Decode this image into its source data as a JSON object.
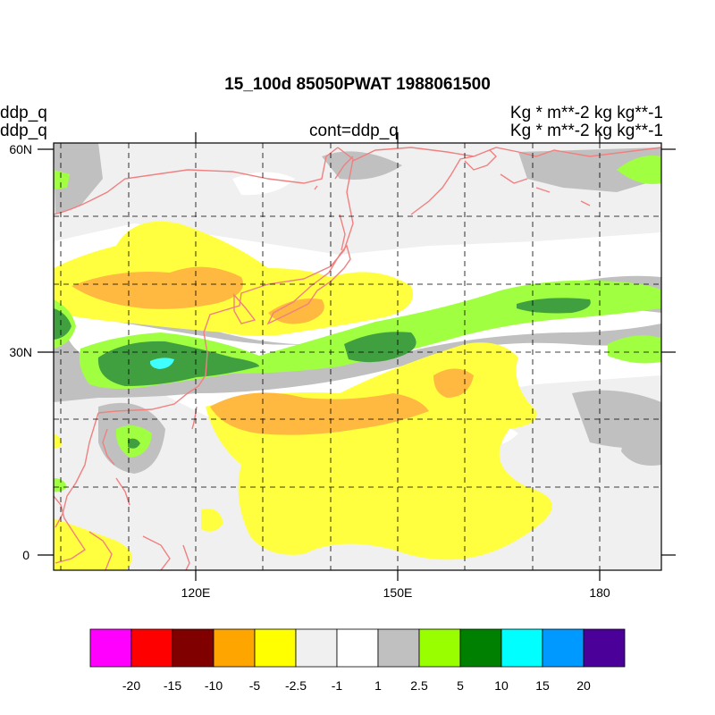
{
  "title": "15_100d 85050PWAT  1988061500",
  "left_labels": [
    "ddp_q",
    "ddp_q"
  ],
  "center_label": "cont=ddp_q",
  "right_labels": [
    "Kg  * m**-2 kg kg**-1",
    "Kg  * m**-2 kg kg**-1"
  ],
  "map": {
    "lat_ticks": [
      {
        "label": "60N",
        "value": 60
      },
      {
        "label": "30N",
        "value": 30
      },
      {
        "label": "0",
        "value": 0
      }
    ],
    "lon_ticks": [
      {
        "label": "120E",
        "value": 120
      },
      {
        "label": "150E",
        "value": 150
      },
      {
        "label": "180",
        "value": 180
      }
    ],
    "extent": {
      "lon_min": 100,
      "lon_max": 187,
      "lat_min": -2,
      "lat_max": 60
    },
    "gridlines": "dashed",
    "coastline_color": "#f08080"
  },
  "colorbar": {
    "colors": [
      "#ff00ff",
      "#ff0000",
      "#800000",
      "#ffa500",
      "#ffff00",
      "#f0f0f0",
      "#ffffff",
      "#c0c0c0",
      "#99ff00",
      "#008000",
      "#00ffff",
      "#0099ff",
      "#4b0099"
    ],
    "labels": [
      "-20",
      "-15",
      "-10",
      "-5",
      "-2.5",
      "-1",
      "1",
      "2.5",
      "5",
      "10",
      "15",
      "20"
    ]
  }
}
